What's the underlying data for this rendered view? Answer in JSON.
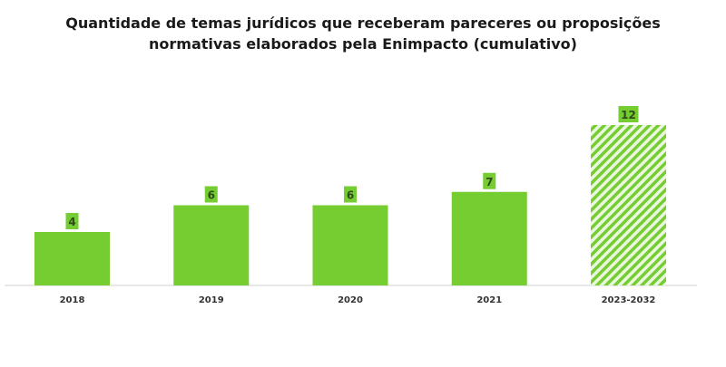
{
  "chart_data": {
    "type": "bar",
    "title_lines": [
      "Quantidade de temas jurídicos que receberam pareceres ou proposições",
      "normativas elaborados pela Enimpacto (cumulativo)"
    ],
    "categories": [
      "2018",
      "2019",
      "2020",
      "2021",
      "2023-2032"
    ],
    "values": [
      4,
      6,
      6,
      7,
      12
    ],
    "projected": [
      false,
      false,
      false,
      false,
      true
    ],
    "xlabel": "",
    "ylabel": "",
    "ylim": [
      0,
      12.8
    ],
    "grid": false,
    "colors": {
      "bar": "#76CD32",
      "label_box": "#76CD32",
      "label_text": "#2f4a1a",
      "axis": "#d0d0d0"
    }
  }
}
